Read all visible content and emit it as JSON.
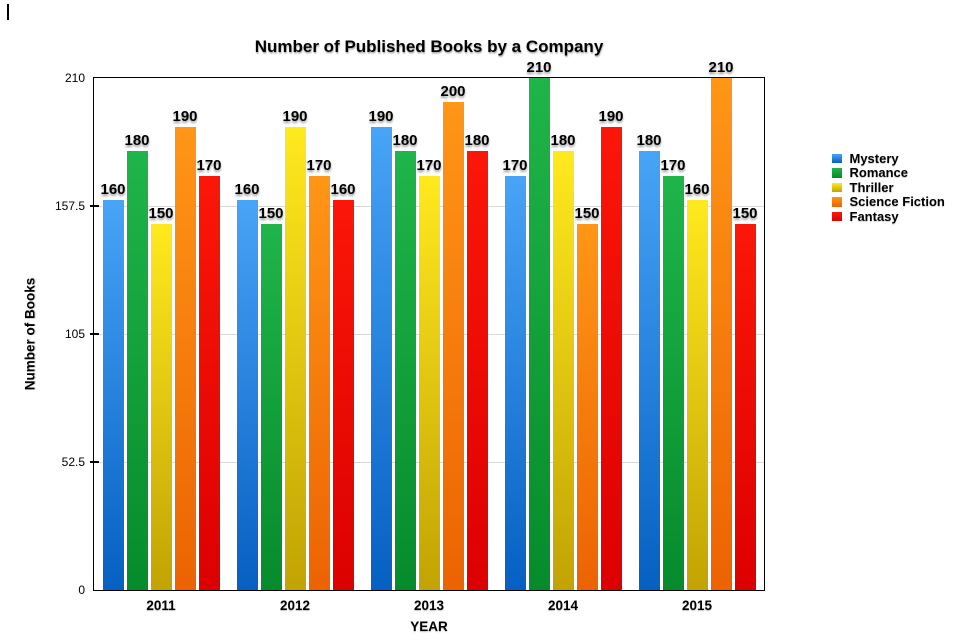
{
  "title": "Number of Published Books by a Company",
  "chart_data": {
    "type": "bar",
    "title": "Number of Published Books by a Company",
    "xlabel": "YEAR",
    "ylabel": "Number of Books",
    "categories": [
      "2011",
      "2012",
      "2013",
      "2014",
      "2015"
    ],
    "series": [
      {
        "name": "Mystery",
        "color": "#1e87e8",
        "gradient_top": "#47a4f6",
        "gradient_bottom": "#0560c2",
        "values": [
          160,
          160,
          190,
          170,
          180
        ]
      },
      {
        "name": "Romance",
        "color": "#0ea23a",
        "gradient_top": "#1fb54a",
        "gradient_bottom": "#068b2b",
        "values": [
          180,
          150,
          180,
          210,
          170
        ]
      },
      {
        "name": "Thriller",
        "color": "#e2cd05",
        "gradient_top": "#ffe91e",
        "gradient_bottom": "#c2a303",
        "values": [
          150,
          190,
          170,
          180,
          160
        ]
      },
      {
        "name": "Science Fiction",
        "color": "#f67e02",
        "gradient_top": "#ff9617",
        "gradient_bottom": "#ec6302",
        "values": [
          190,
          170,
          200,
          150,
          210
        ]
      },
      {
        "name": "Fantasy",
        "color": "#f00505",
        "gradient_top": "#fb1708",
        "gradient_bottom": "#dc0000",
        "values": [
          170,
          160,
          180,
          190,
          150
        ]
      }
    ],
    "ylim": [
      0,
      210
    ],
    "yticks": [
      0,
      52.5,
      105,
      157.5,
      210
    ],
    "ytick_labels": [
      "0",
      "52.5",
      "105",
      "157.5",
      "210"
    ],
    "grid": true,
    "gridline_color": "#d9d9d9",
    "legend_position": "right",
    "bar_labels_shown": true
  }
}
